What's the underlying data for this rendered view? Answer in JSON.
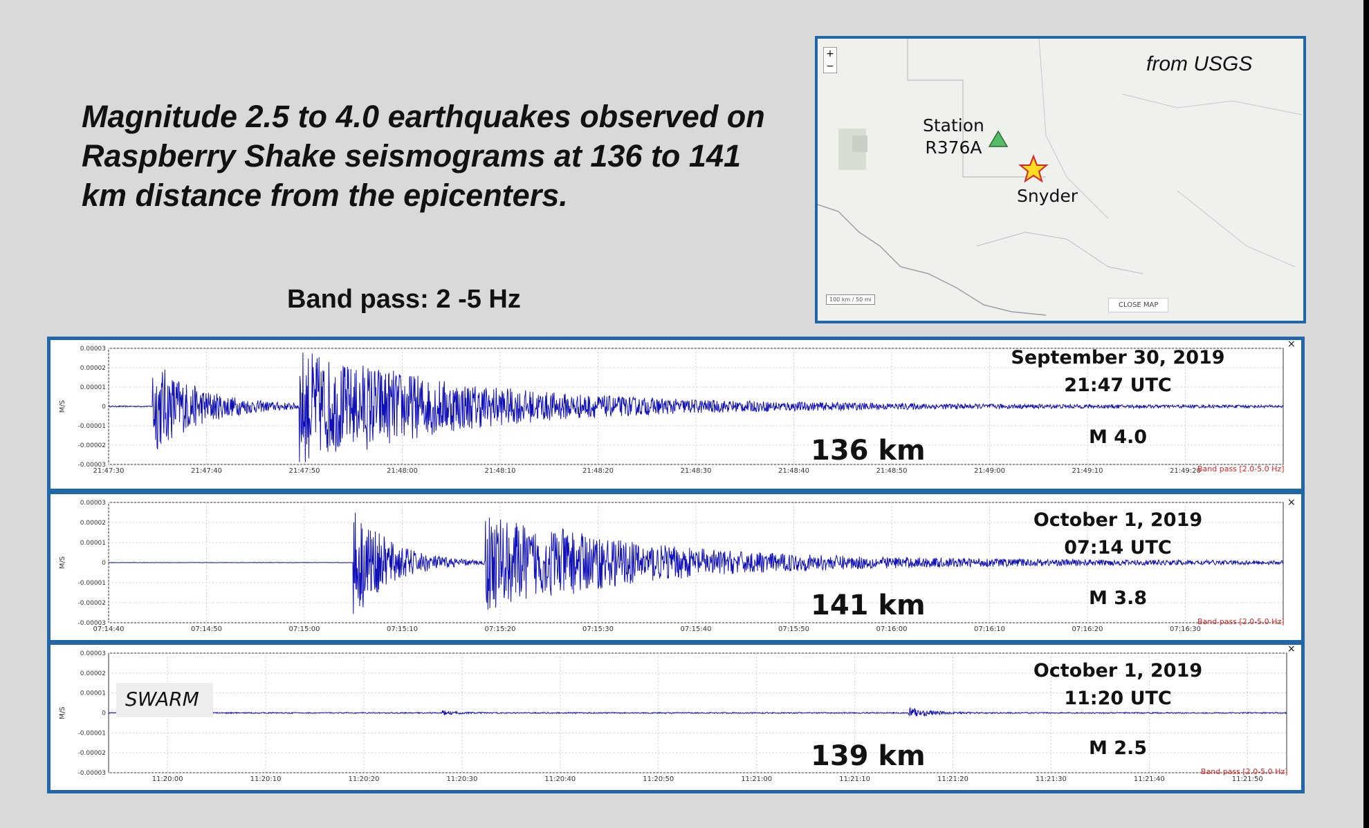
{
  "headline": "Magnitude 2.5 to 4.0 earthquakes observed on Raspberry Shake seismograms at 136 to 141 km distance from the epicenters.",
  "filter_title": "Band pass: 2 -5 Hz",
  "map": {
    "source": "from USGS",
    "station_label_line1": "Station",
    "station_label_line2": "R376A",
    "epicenter_label": "Snyder",
    "close_button": "CLOSE MAP",
    "scale": "100 km / 50 mi",
    "zoom_in": "+",
    "zoom_out": "−",
    "station_color": "#55bb66",
    "epicenter_color": "#ffdd22"
  },
  "colors": {
    "trace": "#1010b8",
    "panel_border": "#2266aa",
    "filter_note": "#dd2222"
  },
  "panels": [
    {
      "date": "September 30, 2019",
      "time": "21:47 UTC",
      "magnitude": "M 4.0",
      "distance": "136 km",
      "filter_note": "Band pass [2.0-5.0 Hz]"
    },
    {
      "date": "October 1, 2019",
      "time": "07:14 UTC",
      "magnitude": "M 3.8",
      "distance": "141 km",
      "filter_note": "Band pass [2.0-5.0 Hz]"
    },
    {
      "date": "October 1, 2019",
      "time": "11:20 UTC",
      "magnitude": "M 2.5",
      "distance": "139 km",
      "filter_note": "Band pass [2.0-5.0 Hz]",
      "tag": "SWARM"
    }
  ],
  "chart_data": [
    {
      "type": "line",
      "title": "September 30, 2019 21:47 UTC",
      "ylabel": "M/S",
      "ylim": [
        -3e-05,
        3e-05
      ],
      "yticks": [
        "0.00003",
        "0.00002",
        "0.00001",
        "0",
        "-0.00001",
        "-0.00002",
        "-0.00003"
      ],
      "xticks": [
        "21:47:30",
        "21:47:40",
        "21:47:50",
        "21:48:00",
        "21:48:10",
        "21:48:20",
        "21:48:30",
        "21:48:40",
        "21:48:50",
        "21:49:00",
        "21:49:10",
        "21:49:20"
      ],
      "x_start_s": 0,
      "x_end_s": 120,
      "noise_amp": 3e-07,
      "bursts": [
        {
          "start_s": 4.5,
          "decay_s": 5,
          "amp": 2.5e-05
        },
        {
          "start_s": 19.5,
          "decay_s": 14,
          "amp": 2.95e-05
        },
        {
          "start_s": 26,
          "decay_s": 40,
          "amp": 4e-06
        }
      ]
    },
    {
      "type": "line",
      "title": "October 1, 2019 07:14 UTC",
      "ylabel": "M/S",
      "ylim": [
        -3e-05,
        3e-05
      ],
      "yticks": [
        "0.00003",
        "0.00002",
        "0.00001",
        "0",
        "-0.00001",
        "-0.00002",
        "-0.00003"
      ],
      "xticks": [
        "07:14:40",
        "07:14:50",
        "07:15:00",
        "07:15:10",
        "07:15:20",
        "07:15:30",
        "07:15:40",
        "07:15:50",
        "07:16:00",
        "07:16:10",
        "07:16:20",
        "07:16:30"
      ],
      "x_start_s": 0,
      "x_end_s": 120,
      "noise_amp": 1e-07,
      "bursts": [
        {
          "start_s": 25,
          "decay_s": 4,
          "amp": 2.85e-05
        },
        {
          "start_s": 38.5,
          "decay_s": 12,
          "amp": 2.5e-05
        },
        {
          "start_s": 45,
          "decay_s": 50,
          "amp": 4e-06
        }
      ]
    },
    {
      "type": "line",
      "title": "October 1, 2019 11:20 UTC",
      "ylabel": "M/S",
      "ylim": [
        -3e-05,
        3e-05
      ],
      "yticks": [
        "0.00003",
        "0.00002",
        "0.00001",
        "0",
        "-0.00001",
        "-0.00002",
        "-0.00003"
      ],
      "xticks": [
        "11:20:00",
        "11:20:10",
        "11:20:20",
        "11:20:30",
        "11:20:40",
        "11:20:50",
        "11:21:00",
        "11:21:10",
        "11:21:20",
        "11:21:30",
        "11:21:40",
        "11:21:50"
      ],
      "x_start_s": -6,
      "x_end_s": 114,
      "noise_amp": 3e-07,
      "bursts": [
        {
          "start_s": 28,
          "decay_s": 1.5,
          "amp": 1e-06
        },
        {
          "start_s": 75.5,
          "decay_s": 2,
          "amp": 3e-06
        }
      ]
    }
  ]
}
